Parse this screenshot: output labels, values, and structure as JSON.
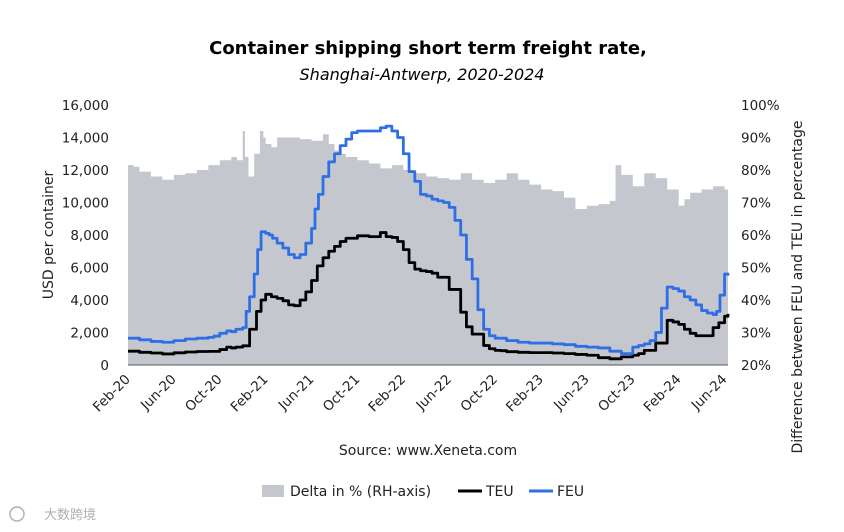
{
  "chart_data": {
    "type": "line",
    "title": "Container shipping short term freight rate,",
    "subtitle": "Shanghai-Antwerp, 2020-2024",
    "ylabel": "USD per container",
    "y2label": "Difference between FEU and TEU in percentage",
    "ylim": [
      0,
      16000
    ],
    "y2lim": [
      20,
      100
    ],
    "yticks": [
      "0",
      "2,000",
      "4,000",
      "6,000",
      "8,000",
      "10,000",
      "12,000",
      "14,000",
      "16,000"
    ],
    "y2ticks": [
      "20%",
      "30%",
      "40%",
      "50%",
      "60%",
      "70%",
      "80%",
      "90%",
      "100%"
    ],
    "xticks": [
      "Feb-20",
      "Jun-20",
      "Oct-20",
      "Feb-21",
      "Jun-21",
      "Oct-21",
      "Feb-22",
      "Jun-22",
      "Oct-22",
      "Feb-23",
      "Jun-23",
      "Oct-23",
      "Feb-24",
      "Jun-24"
    ],
    "x_unit": "months since Feb-2020",
    "xlim": [
      0,
      52.3
    ],
    "source": "Source: www.Xeneta.com",
    "legend": [
      {
        "name": "Delta in % (RH-axis)",
        "kind": "area",
        "color": "#c5c7cf"
      },
      {
        "name": "TEU",
        "kind": "line",
        "color": "#000000"
      },
      {
        "name": "FEU",
        "kind": "line",
        "color": "#2f6fe6"
      }
    ],
    "series": [
      {
        "name": "Delta in % (RH-axis)",
        "axis": "right",
        "type": "area",
        "color": "#c5c7cf",
        "x": [
          0,
          0.5,
          1,
          2,
          3,
          4,
          5,
          6,
          7,
          8,
          9,
          9.5,
          10,
          10.2,
          10.5,
          11,
          11.5,
          11.8,
          12,
          12.5,
          13,
          14,
          15,
          16,
          17,
          17.5,
          18,
          18.5,
          19,
          20,
          21,
          22,
          23,
          24,
          25,
          26,
          27,
          28,
          29,
          30,
          31,
          32,
          33,
          34,
          35,
          36,
          37,
          38,
          39,
          40,
          41,
          42,
          42.5,
          43,
          44,
          45,
          46,
          47,
          48,
          48.5,
          49,
          50,
          51,
          52,
          52.3
        ],
        "values": [
          81.5,
          81,
          79.5,
          78,
          77,
          78.5,
          79,
          80,
          81.5,
          83,
          84,
          83,
          92,
          84,
          78,
          85,
          92,
          90,
          88,
          87,
          90,
          90,
          89.5,
          89,
          91,
          88,
          86,
          85,
          84,
          83,
          82,
          80.5,
          81.5,
          80,
          79,
          78,
          77.5,
          77,
          79,
          77,
          76,
          77,
          79,
          77,
          75.5,
          74,
          73.5,
          71.5,
          68,
          69,
          69.5,
          70.5,
          81.5,
          78.5,
          75,
          79,
          77.5,
          74,
          69,
          71,
          73,
          74,
          75,
          74,
          74
        ]
      },
      {
        "name": "TEU",
        "axis": "left",
        "type": "line",
        "color": "#000000",
        "x": [
          0,
          1,
          2,
          3,
          4,
          5,
          6,
          7,
          8,
          8.6,
          9,
          9.4,
          10,
          10.6,
          11.2,
          11.6,
          12,
          12.5,
          13,
          13.5,
          14,
          14.5,
          15,
          15.5,
          16,
          16.5,
          17,
          17.5,
          18,
          18.5,
          19,
          20,
          21,
          22,
          22.5,
          23,
          23.5,
          24,
          24.5,
          25,
          25.5,
          26,
          26.5,
          27,
          28,
          29,
          29.5,
          30,
          31,
          31.5,
          32,
          32.5,
          33,
          34,
          35,
          36,
          37,
          38,
          39,
          40,
          41,
          42,
          43,
          44,
          44.5,
          45,
          46,
          47,
          47.5,
          48,
          48.5,
          49,
          49.5,
          50,
          51,
          51.5,
          52,
          52.3
        ],
        "values": [
          850,
          780,
          740,
          680,
          750,
          800,
          830,
          840,
          950,
          1100,
          1050,
          1100,
          1180,
          2200,
          3300,
          4000,
          4350,
          4200,
          4100,
          3950,
          3700,
          3650,
          4000,
          4500,
          5200,
          6100,
          6600,
          7000,
          7300,
          7600,
          7800,
          7950,
          7900,
          8150,
          7900,
          7850,
          7600,
          7100,
          6300,
          5900,
          5800,
          5750,
          5650,
          5400,
          4650,
          3250,
          2350,
          1900,
          1200,
          1000,
          900,
          880,
          820,
          780,
          760,
          760,
          740,
          700,
          650,
          600,
          450,
          380,
          500,
          600,
          700,
          900,
          1350,
          2750,
          2650,
          2500,
          2200,
          1950,
          1800,
          1800,
          2300,
          2600,
          3000,
          3150
        ]
      },
      {
        "name": "FEU",
        "axis": "left",
        "type": "line",
        "color": "#2f6fe6",
        "x": [
          0,
          1,
          2,
          3,
          4,
          5,
          6,
          7,
          7.5,
          8,
          8.6,
          9,
          9.4,
          10,
          10.3,
          10.6,
          11,
          11.3,
          11.6,
          12,
          12.3,
          12.6,
          13,
          13.5,
          14,
          14.5,
          15,
          15.5,
          16,
          16.3,
          16.6,
          17,
          17.5,
          18,
          18.5,
          19,
          19.5,
          20,
          21,
          22,
          22.5,
          23,
          23.5,
          24,
          24.5,
          25,
          25.5,
          26,
          26.5,
          27,
          27.5,
          28,
          28.5,
          29,
          29.5,
          30,
          30.5,
          31,
          31.5,
          32,
          33,
          34,
          35,
          36,
          37,
          38,
          39,
          40,
          41,
          42,
          43,
          44,
          44.5,
          45,
          45.5,
          46,
          46.5,
          47,
          47.5,
          48,
          48.5,
          49,
          49.5,
          50,
          50.5,
          51,
          51.3,
          51.6,
          52,
          52.3
        ],
        "values": [
          1650,
          1550,
          1450,
          1400,
          1500,
          1600,
          1650,
          1700,
          1780,
          1950,
          2100,
          2050,
          2200,
          2300,
          3300,
          4200,
          5600,
          7100,
          8200,
          8100,
          8000,
          7800,
          7500,
          7200,
          6800,
          6600,
          6800,
          7500,
          8400,
          9600,
          10500,
          11600,
          12500,
          13000,
          13500,
          13900,
          14300,
          14400,
          14400,
          14600,
          14700,
          14400,
          14000,
          13000,
          11900,
          11300,
          10500,
          10400,
          10200,
          10100,
          10000,
          9700,
          8900,
          8000,
          6500,
          5300,
          3400,
          2200,
          1800,
          1650,
          1500,
          1400,
          1350,
          1350,
          1300,
          1250,
          1150,
          1100,
          1050,
          850,
          700,
          1100,
          1200,
          1300,
          1500,
          2000,
          3500,
          4800,
          4700,
          4550,
          4200,
          4000,
          3700,
          3350,
          3200,
          3100,
          3300,
          4300,
          5600,
          5500
        ]
      }
    ]
  },
  "watermark": "大数跨境"
}
